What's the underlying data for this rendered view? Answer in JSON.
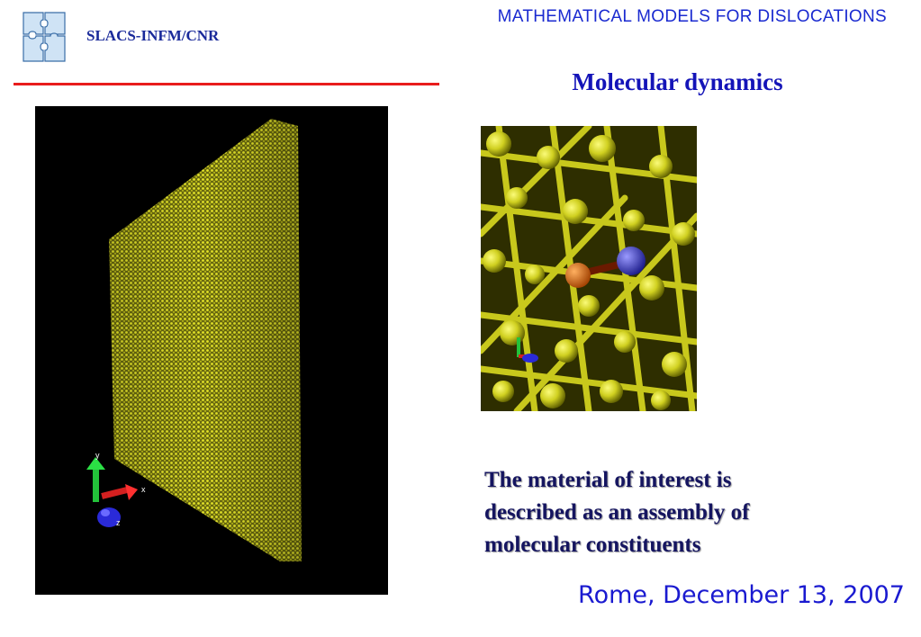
{
  "header": {
    "organization": "SLACS-INFM/CNR",
    "course_title": "MATHEMATICAL MODELS FOR DISLOCATIONS",
    "logo_icon": "puzzle-logo-icon"
  },
  "slide": {
    "title": "Molecular dynamics",
    "caption_lines": [
      "The material of interest is",
      "described as an assembly of",
      "molecular constituents"
    ]
  },
  "figures": {
    "large": {
      "axis_labels": {
        "x": "x",
        "y": "y",
        "z": "z"
      }
    },
    "small": {
      "axis_labels": {
        "x": "",
        "y": "",
        "z": ""
      }
    }
  },
  "footer": {
    "date_line": "Rome, December 13, 2007"
  },
  "colors": {
    "accent_red": "#e81c1c",
    "title_blue": "#1414b8",
    "atom_yellow": "#d8d820"
  }
}
